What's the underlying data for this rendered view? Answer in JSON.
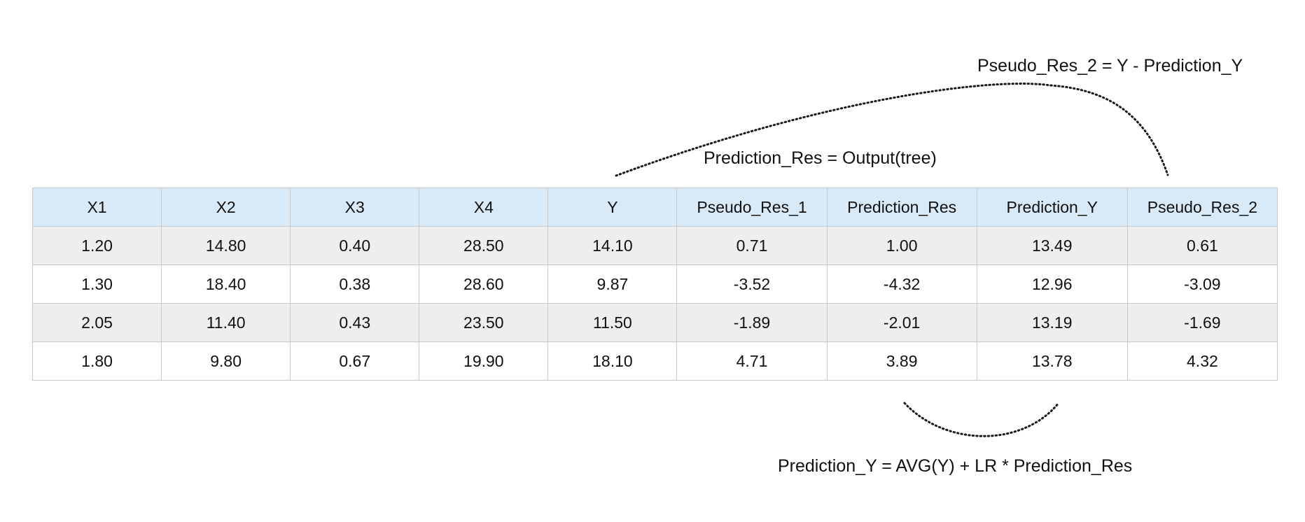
{
  "annotations": {
    "pseudo_res_2_formula": "Pseudo_Res_2 = Y - Prediction_Y",
    "prediction_res_formula": "Prediction_Res = Output(tree)",
    "prediction_y_formula": "Prediction_Y = AVG(Y) + LR * Prediction_Res"
  },
  "table": {
    "headers": [
      "X1",
      "X2",
      "X3",
      "X4",
      "Y",
      "Pseudo_Res_1",
      "Prediction_Res",
      "Prediction_Y",
      "Pseudo_Res_2"
    ],
    "rows": [
      [
        "1.20",
        "14.80",
        "0.40",
        "28.50",
        "14.10",
        "0.71",
        "1.00",
        "13.49",
        "0.61"
      ],
      [
        "1.30",
        "18.40",
        "0.38",
        "28.60",
        "9.87",
        "-3.52",
        "-4.32",
        "12.96",
        "-3.09"
      ],
      [
        "2.05",
        "11.40",
        "0.43",
        "23.50",
        "11.50",
        "-1.89",
        "-2.01",
        "13.19",
        "-1.69"
      ],
      [
        "1.80",
        "9.80",
        "0.67",
        "19.90",
        "18.10",
        "4.71",
        "3.89",
        "13.78",
        "4.32"
      ]
    ]
  },
  "colors": {
    "header_background": "#d8eaf8",
    "shaded_row_background": "#eeeeee",
    "border": "#c9c9c9",
    "arc_stroke": "#1a1a1a"
  }
}
